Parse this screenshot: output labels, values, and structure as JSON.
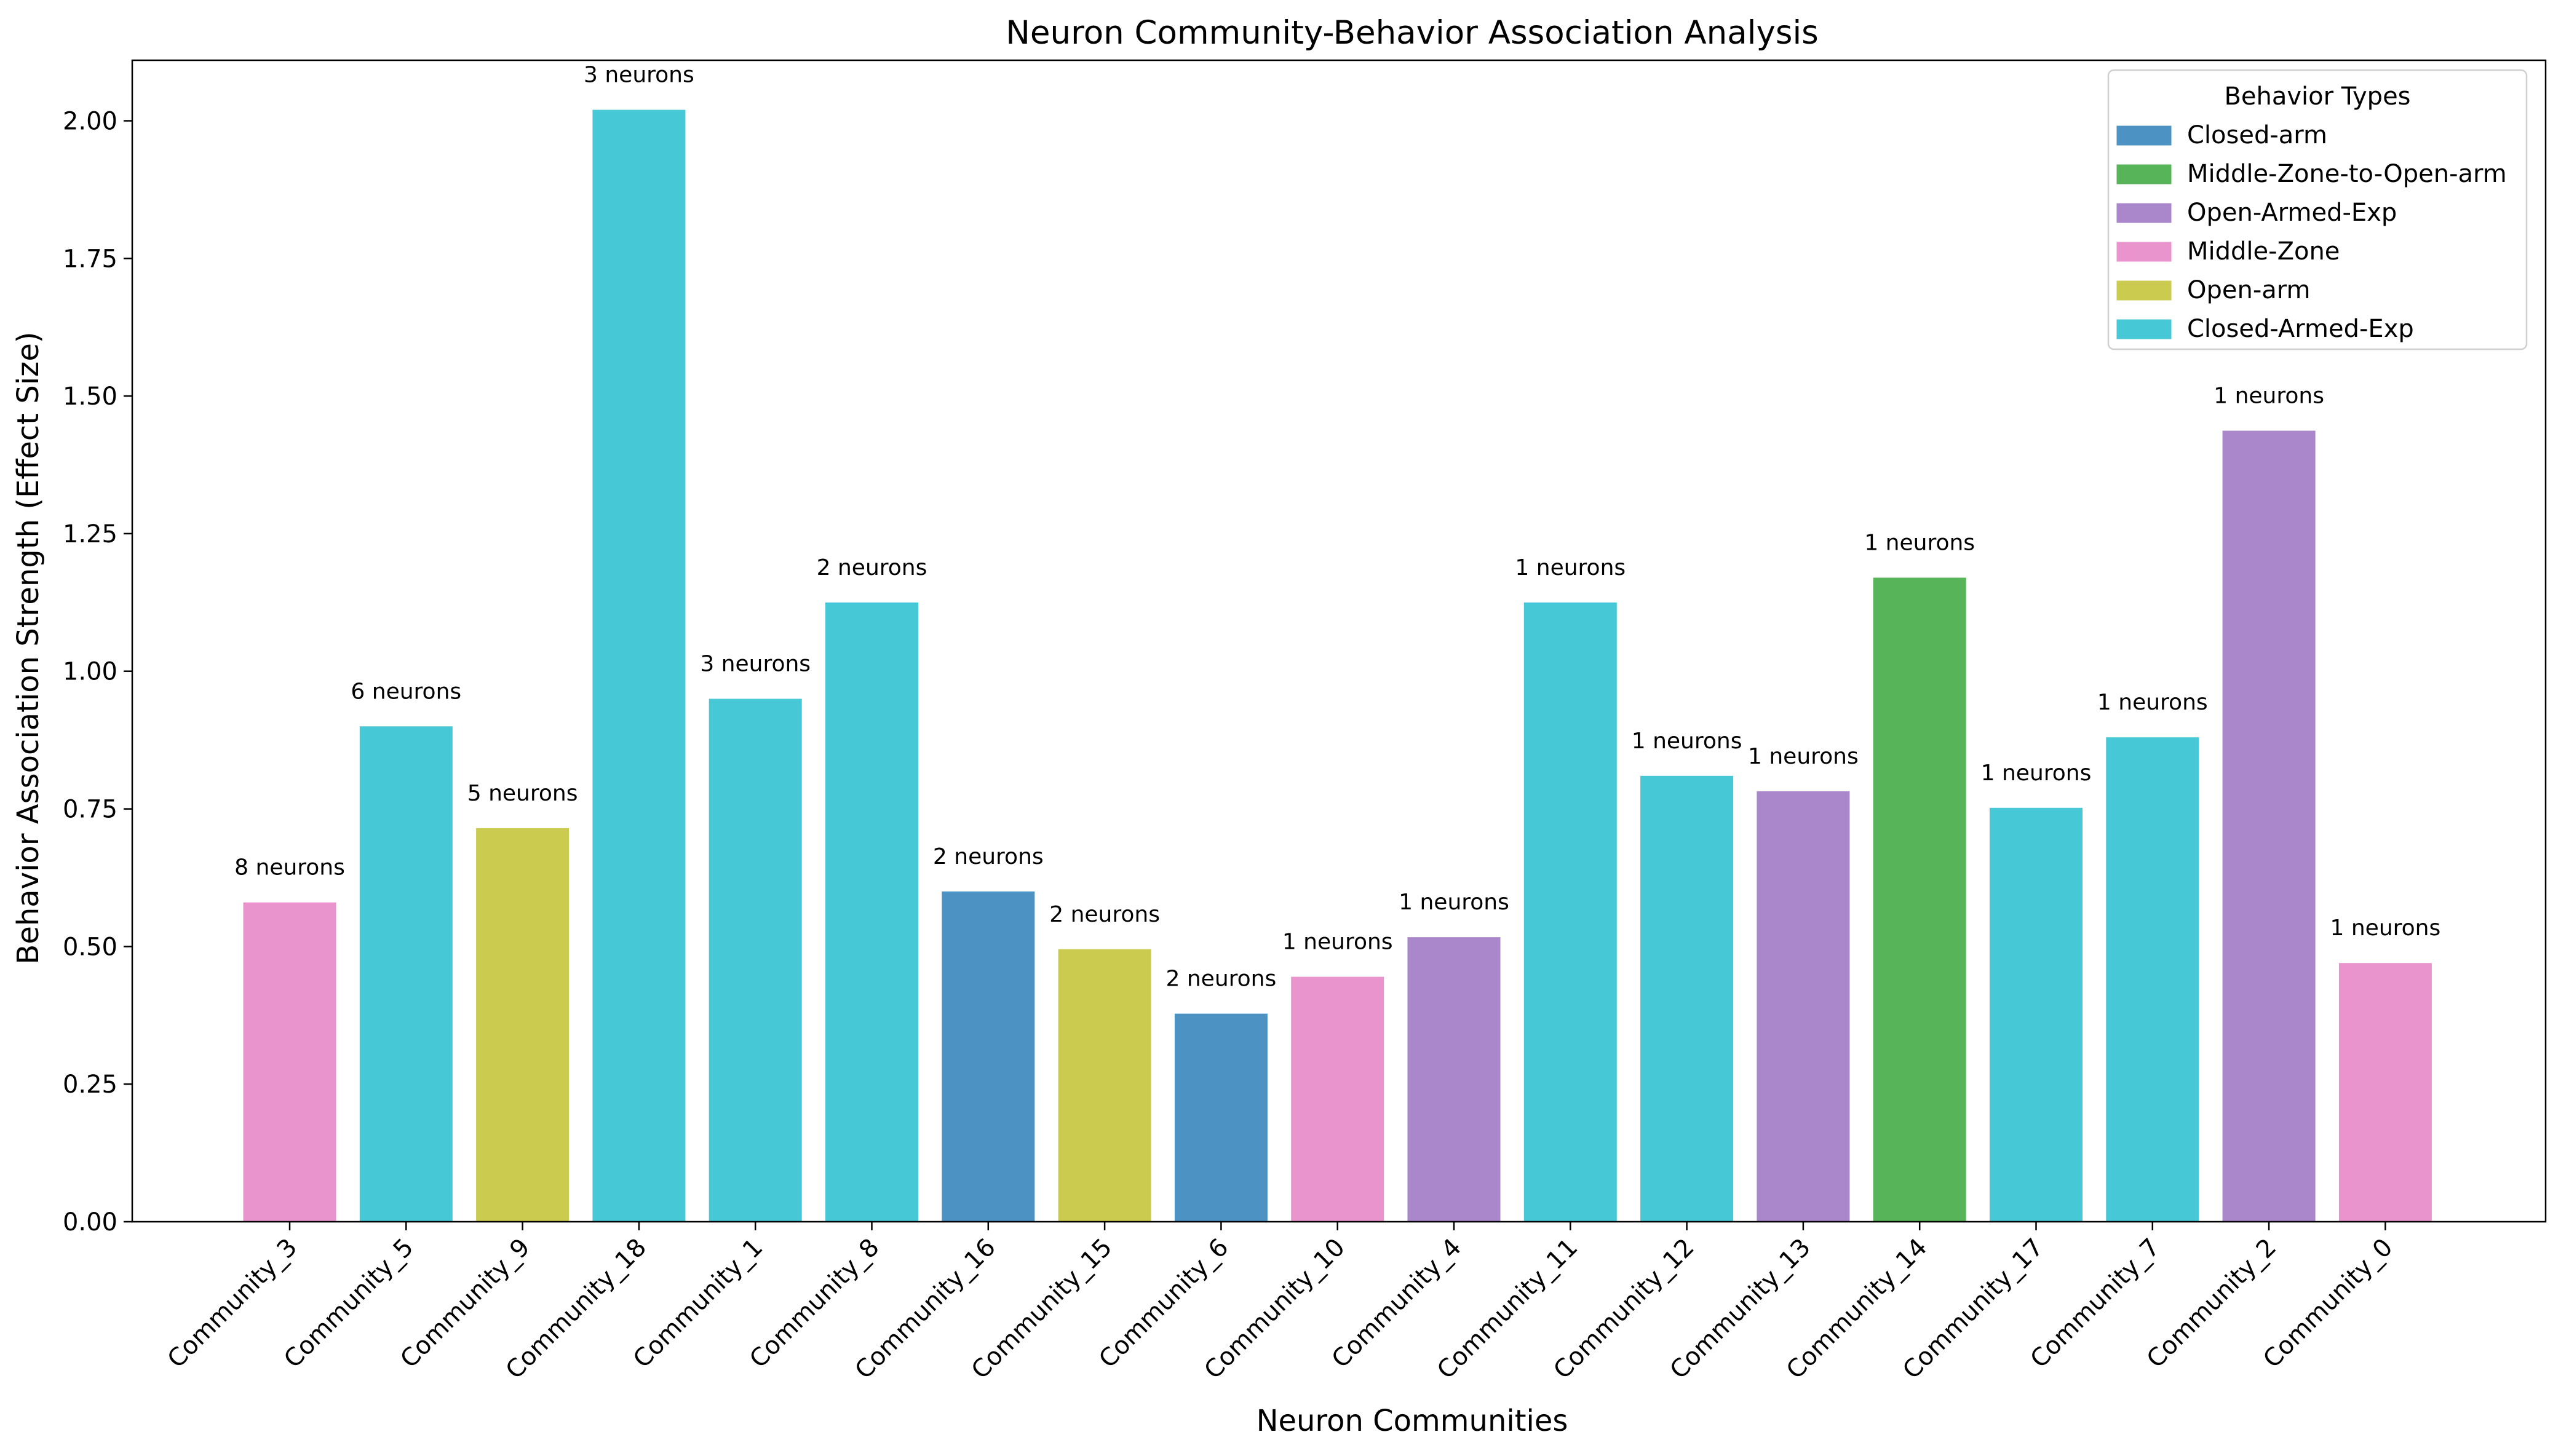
{
  "chart_data": {
    "type": "bar",
    "title": "Neuron Community-Behavior Association Analysis",
    "xlabel": "Neuron Communities",
    "ylabel": "Behavior Association Strength (Effect Size)",
    "ylim": [
      0,
      2.11
    ],
    "yticks": [
      0.0,
      0.25,
      0.5,
      0.75,
      1.0,
      1.25,
      1.5,
      1.75,
      2.0
    ],
    "ytick_labels": [
      "0.00",
      "0.25",
      "0.50",
      "0.75",
      "1.00",
      "1.25",
      "1.50",
      "1.75",
      "2.00"
    ],
    "grid": false,
    "legend": {
      "title": "Behavior Types",
      "placement": "top-right",
      "entries": [
        {
          "name": "Closed-arm",
          "color": "#4c93c4"
        },
        {
          "name": "Middle-Zone-to-Open-arm",
          "color": "#58b458"
        },
        {
          "name": "Open-Armed-Exp",
          "color": "#a987ca"
        },
        {
          "name": "Middle-Zone",
          "color": "#e994cd"
        },
        {
          "name": "Open-arm",
          "color": "#cbcb4f"
        },
        {
          "name": "Closed-Armed-Exp",
          "color": "#46c8d6"
        }
      ]
    },
    "bars": [
      {
        "category": "Community_3",
        "value": 0.58,
        "behavior": "Middle-Zone",
        "label": "8 neurons"
      },
      {
        "category": "Community_5",
        "value": 0.9,
        "behavior": "Closed-Armed-Exp",
        "label": "6 neurons"
      },
      {
        "category": "Community_9",
        "value": 0.715,
        "behavior": "Open-arm",
        "label": "5 neurons"
      },
      {
        "category": "Community_18",
        "value": 2.02,
        "behavior": "Closed-Armed-Exp",
        "label": "3 neurons"
      },
      {
        "category": "Community_1",
        "value": 0.95,
        "behavior": "Closed-Armed-Exp",
        "label": "3 neurons"
      },
      {
        "category": "Community_8",
        "value": 1.125,
        "behavior": "Closed-Armed-Exp",
        "label": "2 neurons"
      },
      {
        "category": "Community_16",
        "value": 0.6,
        "behavior": "Closed-arm",
        "label": "2 neurons"
      },
      {
        "category": "Community_15",
        "value": 0.495,
        "behavior": "Open-arm",
        "label": "2 neurons"
      },
      {
        "category": "Community_6",
        "value": 0.378,
        "behavior": "Closed-arm",
        "label": "2 neurons"
      },
      {
        "category": "Community_10",
        "value": 0.445,
        "behavior": "Middle-Zone",
        "label": "1 neurons"
      },
      {
        "category": "Community_4",
        "value": 0.517,
        "behavior": "Open-Armed-Exp",
        "label": "1 neurons"
      },
      {
        "category": "Community_11",
        "value": 1.125,
        "behavior": "Closed-Armed-Exp",
        "label": "1 neurons"
      },
      {
        "category": "Community_12",
        "value": 0.81,
        "behavior": "Closed-Armed-Exp",
        "label": "1 neurons"
      },
      {
        "category": "Community_13",
        "value": 0.782,
        "behavior": "Open-Armed-Exp",
        "label": "1 neurons"
      },
      {
        "category": "Community_14",
        "value": 1.17,
        "behavior": "Middle-Zone-to-Open-arm",
        "label": "1 neurons"
      },
      {
        "category": "Community_17",
        "value": 0.752,
        "behavior": "Closed-Armed-Exp",
        "label": "1 neurons"
      },
      {
        "category": "Community_7",
        "value": 0.88,
        "behavior": "Closed-Armed-Exp",
        "label": "1 neurons"
      },
      {
        "category": "Community_2",
        "value": 1.437,
        "behavior": "Open-Armed-Exp",
        "label": "1 neurons"
      },
      {
        "category": "Community_0",
        "value": 0.47,
        "behavior": "Middle-Zone",
        "label": "1 neurons"
      }
    ]
  }
}
